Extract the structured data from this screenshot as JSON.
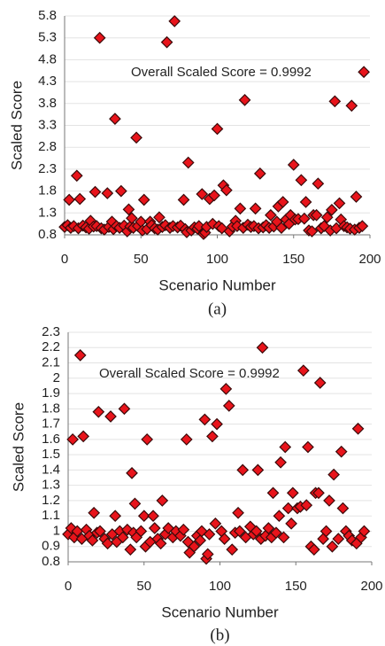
{
  "chart_data": [
    {
      "type": "scatter",
      "caption": "(a)",
      "annotation": "Overall Scaled Score = 0.9992",
      "xlabel": "Scenario Number",
      "ylabel": "Scaled Score",
      "color": "#e8141b",
      "grid": true,
      "xlim": [
        0,
        200
      ],
      "xticks": [
        0,
        50,
        100,
        150,
        200
      ],
      "ylim": [
        0.8,
        5.8
      ],
      "yticks": [
        0.8,
        1.3,
        1.8,
        2.3,
        2.8,
        3.3,
        3.8,
        4.3,
        4.8,
        5.3,
        5.8
      ],
      "x": [
        0,
        2,
        3,
        4,
        6,
        8,
        9,
        10,
        12,
        14,
        16,
        17,
        19,
        20,
        21,
        23,
        24,
        26,
        28,
        29,
        31,
        32,
        33,
        34,
        36,
        37,
        39,
        41,
        42,
        43,
        44,
        45,
        47,
        48,
        50,
        51,
        52,
        54,
        56,
        57,
        59,
        61,
        62,
        64,
        66,
        67,
        69,
        71,
        72,
        74,
        76,
        78,
        79,
        80,
        81,
        83,
        85,
        87,
        88,
        90,
        91,
        92,
        93,
        95,
        97,
        98,
        100,
        101,
        103,
        104,
        106,
        108,
        110,
        112,
        113,
        115,
        117,
        118,
        120,
        122,
        124,
        125,
        127,
        128,
        130,
        132,
        134,
        135,
        137,
        139,
        140,
        142,
        143,
        145,
        147,
        148,
        150,
        151,
        153,
        155,
        157,
        158,
        160,
        162,
        163,
        165,
        166,
        168,
        170,
        172,
        174,
        175,
        177,
        178,
        180,
        181,
        183,
        185,
        187,
        188,
        190,
        191,
        193,
        195,
        196
      ],
      "values": [
        0.98,
        1.02,
        1.6,
        0.96,
        1.0,
        2.15,
        0.95,
        1.62,
        1.01,
        0.97,
        0.94,
        1.12,
        0.99,
        1.78,
        1.0,
        5.3,
        0.95,
        0.92,
        1.75,
        0.98,
        1.1,
        0.93,
        3.45,
        1.0,
        0.96,
        1.8,
        1.01,
        0.88,
        1.38,
        0.99,
        1.18,
        0.96,
        3.02,
        1.0,
        1.1,
        0.9,
        1.6,
        0.93,
        1.1,
        1.02,
        0.95,
        0.92,
        1.2,
        0.98,
        1.02,
        5.2,
        0.96,
        1.0,
        5.68,
        0.97,
        1.01,
        1.6,
        0.93,
        0.86,
        2.45,
        0.9,
        0.97,
        0.94,
        1.0,
        1.73,
        0.82,
        0.85,
        0.98,
        1.62,
        1.05,
        1.7,
        3.22,
        1.0,
        0.95,
        1.93,
        1.82,
        0.88,
        0.99,
        1.12,
        1.0,
        1.4,
        0.96,
        3.88,
        1.03,
        0.98,
        1.0,
        1.4,
        0.95,
        2.2,
        0.97,
        1.02,
        0.96,
        1.25,
        0.99,
        1.1,
        1.45,
        0.96,
        1.55,
        1.15,
        1.05,
        1.25,
        2.4,
        1.15,
        1.16,
        2.05,
        1.17,
        1.55,
        0.9,
        0.88,
        1.25,
        1.25,
        1.97,
        0.95,
        1.0,
        1.2,
        0.9,
        1.37,
        3.85,
        0.95,
        1.52,
        1.15,
        1.0,
        0.97,
        0.94,
        3.75,
        0.92,
        1.67,
        0.96,
        1.0,
        4.52
      ]
    },
    {
      "type": "scatter",
      "caption": "(b)",
      "annotation": "Overall Scaled Score = 0.9992",
      "xlabel": "Scenario Number",
      "ylabel": "Scaled Score",
      "color": "#e8141b",
      "grid": true,
      "xlim": [
        0,
        200
      ],
      "xticks": [
        0,
        50,
        100,
        150,
        200
      ],
      "ylim": [
        0.8,
        2.3
      ],
      "yticks": [
        0.8,
        0.9,
        1,
        1.1,
        1.2,
        1.3,
        1.4,
        1.5,
        1.6,
        1.7,
        1.8,
        1.9,
        2,
        2.1,
        2.2,
        2.3
      ],
      "x": [
        0,
        2,
        3,
        4,
        6,
        8,
        9,
        10,
        12,
        14,
        16,
        17,
        19,
        20,
        21,
        24,
        26,
        28,
        29,
        31,
        32,
        34,
        36,
        37,
        39,
        41,
        42,
        43,
        44,
        45,
        48,
        50,
        51,
        52,
        54,
        56,
        57,
        59,
        61,
        62,
        64,
        66,
        69,
        71,
        74,
        76,
        78,
        79,
        80,
        83,
        85,
        87,
        88,
        90,
        91,
        92,
        93,
        95,
        97,
        98,
        101,
        103,
        104,
        106,
        108,
        110,
        112,
        113,
        115,
        117,
        120,
        122,
        124,
        125,
        127,
        128,
        130,
        132,
        134,
        135,
        137,
        139,
        140,
        142,
        143,
        145,
        147,
        148,
        151,
        153,
        155,
        157,
        158,
        160,
        162,
        163,
        165,
        166,
        168,
        170,
        172,
        174,
        175,
        178,
        180,
        181,
        183,
        185,
        187,
        190,
        191,
        193,
        195
      ],
      "values": [
        0.98,
        1.02,
        1.6,
        0.96,
        1.0,
        2.15,
        0.95,
        1.62,
        1.01,
        0.97,
        0.94,
        1.12,
        0.99,
        1.78,
        1.0,
        0.95,
        0.92,
        1.75,
        0.98,
        1.1,
        0.93,
        1.0,
        0.96,
        1.8,
        1.01,
        0.88,
        1.38,
        0.99,
        1.18,
        0.96,
        1.0,
        1.1,
        0.9,
        1.6,
        0.93,
        1.1,
        1.02,
        0.95,
        0.92,
        1.2,
        0.98,
        1.02,
        0.96,
        1.0,
        0.97,
        1.01,
        1.6,
        0.93,
        0.86,
        0.9,
        0.97,
        0.94,
        1.0,
        1.73,
        0.82,
        0.85,
        0.98,
        1.62,
        1.05,
        1.7,
        1.0,
        0.95,
        1.93,
        1.82,
        0.88,
        0.99,
        1.12,
        1.0,
        1.4,
        0.96,
        1.03,
        0.98,
        1.0,
        1.4,
        0.95,
        2.2,
        0.97,
        1.02,
        0.96,
        1.25,
        0.99,
        1.1,
        1.45,
        0.96,
        1.55,
        1.15,
        1.05,
        1.25,
        1.15,
        1.16,
        2.05,
        1.17,
        1.55,
        0.9,
        0.88,
        1.25,
        1.25,
        1.97,
        0.95,
        1.0,
        1.2,
        0.9,
        1.37,
        0.95,
        1.52,
        1.15,
        1.0,
        0.97,
        0.94,
        0.92,
        1.67,
        0.96,
        1.0
      ]
    }
  ]
}
